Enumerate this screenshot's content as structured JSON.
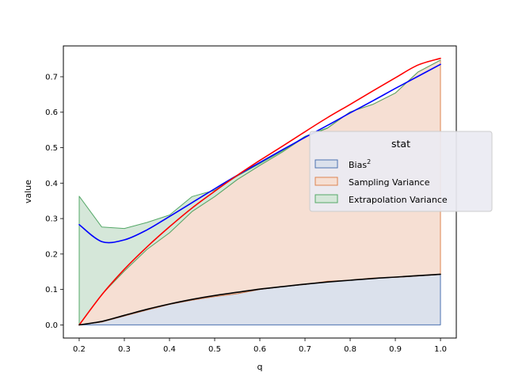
{
  "chart_data": {
    "type": "area",
    "xlabel": "q",
    "ylabel": "value",
    "xlim": [
      0.165,
      1.035
    ],
    "ylim": [
      -0.037,
      0.787
    ],
    "xticks": [
      0.2,
      0.3,
      0.4,
      0.5,
      0.6,
      0.7,
      0.8,
      0.9,
      1.0
    ],
    "yticks": [
      0.0,
      0.1,
      0.2,
      0.3,
      0.4,
      0.5,
      0.6,
      0.7
    ],
    "grid": false,
    "legend": {
      "title": "stat",
      "placement": "center-right",
      "entries": [
        {
          "label": "Bias",
          "superscript": "2",
          "fill": "#dbe1ec",
          "edge": "#4c72b0"
        },
        {
          "label": "Sampling Variance",
          "fill": "#f6dfd3",
          "edge": "#dd8452"
        },
        {
          "label": "Extrapolation Variance",
          "fill": "#d5e7d9",
          "edge": "#55a868"
        }
      ]
    },
    "x": [
      0.2,
      0.25,
      0.3,
      0.35,
      0.4,
      0.45,
      0.5,
      0.55,
      0.6,
      0.65,
      0.7,
      0.75,
      0.8,
      0.85,
      0.9,
      0.95,
      1.0
    ],
    "series": [
      {
        "name": "Bias",
        "kind": "stacked-area",
        "fill": "#dbe1ec",
        "edge": "#4c72b0",
        "values": [
          0.0,
          0.008,
          0.025,
          0.042,
          0.058,
          0.07,
          0.08,
          0.088,
          0.1,
          0.108,
          0.114,
          0.123,
          0.126,
          0.132,
          0.134,
          0.138,
          0.142
        ]
      },
      {
        "name": "Sampling Variance",
        "kind": "stacked-area",
        "fill": "#f6dfd3",
        "edge": "#dd8452",
        "values": [
          0.0,
          0.078,
          0.127,
          0.171,
          0.202,
          0.25,
          0.282,
          0.322,
          0.35,
          0.38,
          0.416,
          0.432,
          0.475,
          0.49,
          0.52,
          0.575,
          0.605
        ]
      },
      {
        "name": "Extrapolation Variance",
        "kind": "stacked-area",
        "fill": "#d5e7d9",
        "edge": "#55a868",
        "values": [
          0.363,
          0.19,
          0.12,
          0.076,
          0.05,
          0.042,
          0.018,
          0.01,
          0.005,
          0.003,
          0.002,
          0.001,
          0.0,
          0.0,
          0.0,
          0.0,
          0.0
        ]
      }
    ],
    "lines": [
      {
        "name": "total",
        "color": "#0000ff",
        "x": [
          0.2,
          0.25,
          0.3,
          0.35,
          0.4,
          0.45,
          0.5,
          0.55,
          0.6,
          0.65,
          0.7,
          0.75,
          0.8,
          0.85,
          0.9,
          0.95,
          1.0
        ],
        "values": [
          0.283,
          0.235,
          0.24,
          0.268,
          0.306,
          0.345,
          0.384,
          0.422,
          0.458,
          0.494,
          0.529,
          0.563,
          0.598,
          0.632,
          0.667,
          0.701,
          0.735
        ]
      },
      {
        "name": "smooth variance",
        "color": "#ff0000",
        "x": [
          0.2,
          0.25,
          0.3,
          0.35,
          0.4,
          0.45,
          0.5,
          0.55,
          0.6,
          0.65,
          0.7,
          0.75,
          0.8,
          0.85,
          0.9,
          0.95,
          1.0
        ],
        "values": [
          0.0,
          0.085,
          0.157,
          0.22,
          0.277,
          0.33,
          0.377,
          0.422,
          0.464,
          0.504,
          0.545,
          0.585,
          0.622,
          0.66,
          0.697,
          0.733,
          0.752
        ]
      },
      {
        "name": "smooth bias",
        "color": "#000000",
        "x": [
          0.2,
          0.25,
          0.3,
          0.35,
          0.4,
          0.45,
          0.5,
          0.55,
          0.6,
          0.65,
          0.7,
          0.75,
          0.8,
          0.85,
          0.9,
          0.95,
          1.0
        ],
        "values": [
          0.0,
          0.01,
          0.027,
          0.044,
          0.059,
          0.072,
          0.083,
          0.092,
          0.101,
          0.108,
          0.115,
          0.121,
          0.126,
          0.131,
          0.135,
          0.139,
          0.143
        ]
      }
    ]
  }
}
